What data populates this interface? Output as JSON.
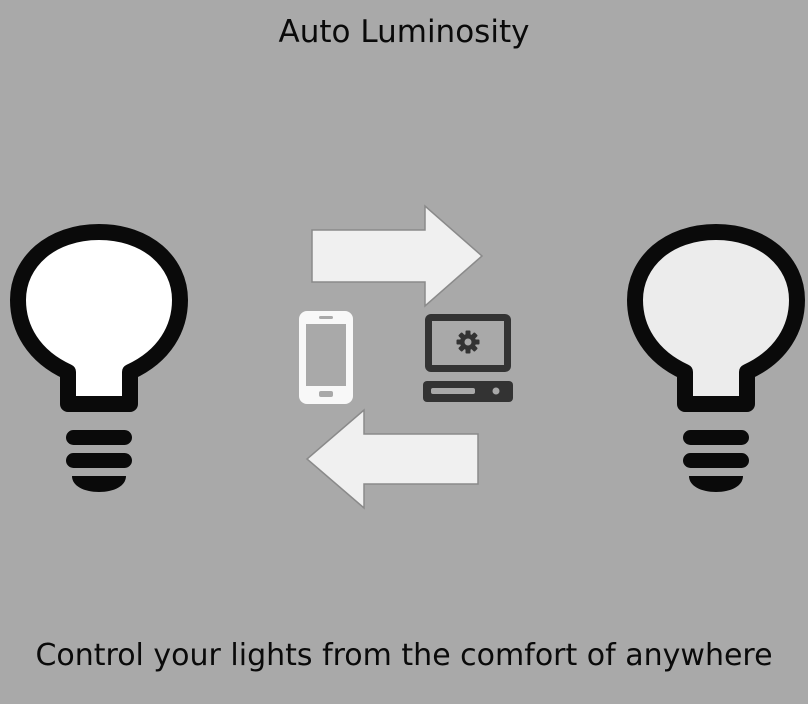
{
  "title": "Auto Luminosity",
  "caption": "Control your lights from the comfort of anywhere",
  "icons": {
    "left_bulb": "lightbulb-icon",
    "right_bulb": "lightbulb-icon",
    "right_arrow": "arrow-right-icon",
    "left_arrow": "arrow-left-icon",
    "phone": "smartphone-icon",
    "computer": "computer-icon",
    "gear": "gear-icon"
  },
  "colors": {
    "background": "#a9a9a9",
    "outline": "#0a0a0a",
    "left_bulb_fill": "#ffffff",
    "right_bulb_fill": "#ececec",
    "arrow_fill": "#f0f0f0",
    "computer": "#333333"
  }
}
